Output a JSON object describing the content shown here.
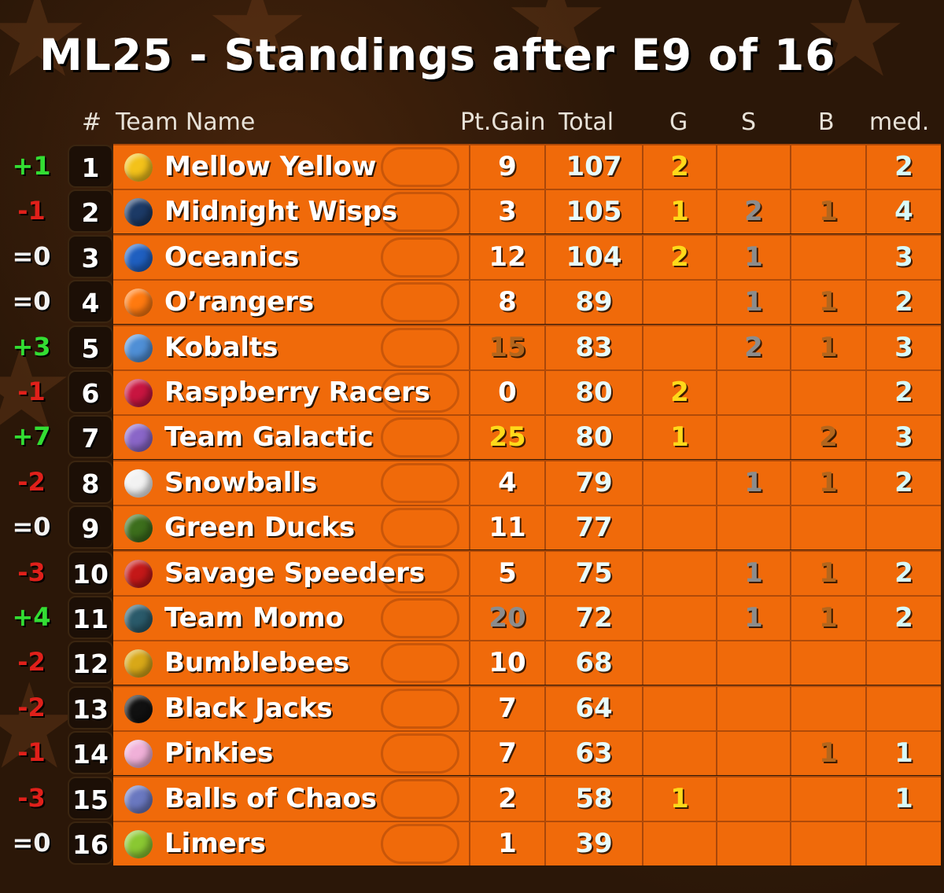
{
  "title": "ML25 - Standings after E9 of 16",
  "headers": {
    "num": "#",
    "team": "Team Name",
    "gain": "Pt.Gain",
    "total": "Total",
    "g": "G",
    "s": "S",
    "b": "B",
    "med": "med."
  },
  "colors": {
    "row_bg": "#f06a0a",
    "gold": "#ffd91a",
    "silver": "#8c8c8c",
    "bronze": "#b4661c",
    "up": "#33dd33",
    "down": "#e0201a"
  },
  "rows": [
    {
      "change": "+1",
      "rank": "1",
      "team": "Mellow Yellow",
      "gain": "9",
      "total": "107",
      "g": "2",
      "s": "",
      "b": "",
      "med": "2",
      "ball": "#f3c21a"
    },
    {
      "change": "-1",
      "rank": "2",
      "team": "Midnight Wisps",
      "gain": "3",
      "total": "105",
      "g": "1",
      "s": "2",
      "b": "1",
      "med": "4",
      "ball": "#1c3a66"
    },
    {
      "change": "=0",
      "rank": "3",
      "team": "Oceanics",
      "gain": "12",
      "total": "104",
      "g": "2",
      "s": "1",
      "b": "",
      "med": "3",
      "ball": "#1f5fc0"
    },
    {
      "change": "=0",
      "rank": "4",
      "team": "O’rangers",
      "gain": "8",
      "total": "89",
      "g": "",
      "s": "1",
      "b": "1",
      "med": "2",
      "ball": "#ff7a10"
    },
    {
      "change": "+3",
      "rank": "5",
      "team": "Kobalts",
      "gain": "15",
      "total": "83",
      "g": "",
      "s": "2",
      "b": "1",
      "med": "3",
      "ball": "#4f8fd6"
    },
    {
      "change": "-1",
      "rank": "6",
      "team": "Raspberry Racers",
      "gain": "0",
      "total": "80",
      "g": "2",
      "s": "",
      "b": "",
      "med": "2",
      "ball": "#c81540"
    },
    {
      "change": "+7",
      "rank": "7",
      "team": "Team Galactic",
      "gain": "25",
      "total": "80",
      "g": "1",
      "s": "",
      "b": "2",
      "med": "3",
      "ball": "#8a66c8"
    },
    {
      "change": "-2",
      "rank": "8",
      "team": "Snowballs",
      "gain": "4",
      "total": "79",
      "g": "",
      "s": "1",
      "b": "1",
      "med": "2",
      "ball": "#f2f2f2"
    },
    {
      "change": "=0",
      "rank": "9",
      "team": "Green Ducks",
      "gain": "11",
      "total": "77",
      "g": "",
      "s": "",
      "b": "",
      "med": "",
      "ball": "#3c6e1c"
    },
    {
      "change": "-3",
      "rank": "10",
      "team": "Savage Speeders",
      "gain": "5",
      "total": "75",
      "g": "",
      "s": "1",
      "b": "1",
      "med": "2",
      "ball": "#c41818"
    },
    {
      "change": "+4",
      "rank": "11",
      "team": "Team Momo",
      "gain": "20",
      "total": "72",
      "g": "",
      "s": "1",
      "b": "1",
      "med": "2",
      "ball": "#2a5a6a"
    },
    {
      "change": "-2",
      "rank": "12",
      "team": "Bumblebees",
      "gain": "10",
      "total": "68",
      "g": "",
      "s": "",
      "b": "",
      "med": "",
      "ball": "#d8a818"
    },
    {
      "change": "-2",
      "rank": "13",
      "team": "Black Jacks",
      "gain": "7",
      "total": "64",
      "g": "",
      "s": "",
      "b": "",
      "med": "",
      "ball": "#111111"
    },
    {
      "change": "-1",
      "rank": "14",
      "team": "Pinkies",
      "gain": "7",
      "total": "63",
      "g": "",
      "s": "",
      "b": "1",
      "med": "1",
      "ball": "#f0b0d8"
    },
    {
      "change": "-3",
      "rank": "15",
      "team": "Balls of Chaos",
      "gain": "2",
      "total": "58",
      "g": "1",
      "s": "",
      "b": "",
      "med": "1",
      "ball": "#6a78c0"
    },
    {
      "change": "=0",
      "rank": "16",
      "team": "Limers",
      "gain": "1",
      "total": "39",
      "g": "",
      "s": "",
      "b": "",
      "med": "",
      "ball": "#8ac832"
    }
  ]
}
